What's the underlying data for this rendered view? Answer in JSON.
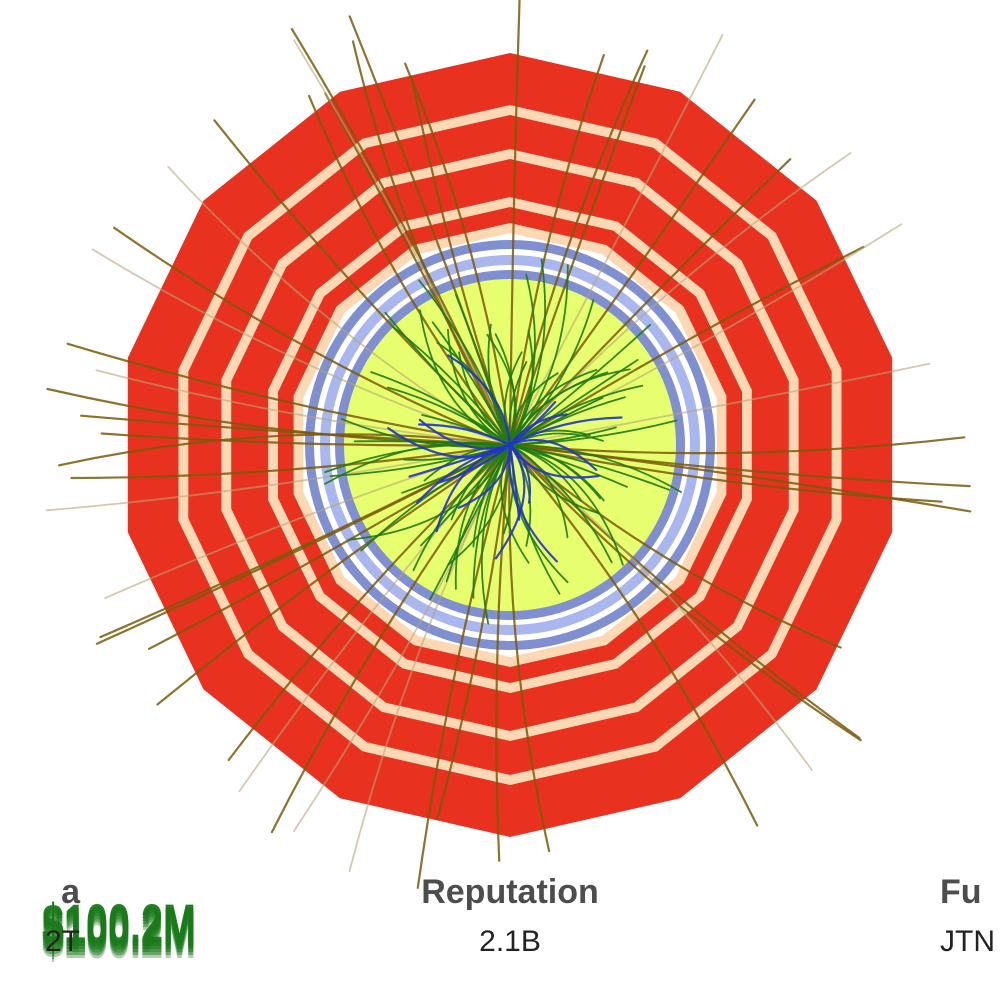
{
  "stats": [
    {
      "label": "a",
      "value": "2T"
    },
    {
      "label": "Reputation",
      "value": "2.1B"
    },
    {
      "label": "Fu",
      "value": "JTN"
    }
  ],
  "badge": {
    "text": "$100.2M",
    "color": "#1a7a1a"
  },
  "colors": {
    "calorimeter_outer": "#e8321f",
    "calorimeter_gap": "#fcd9b4",
    "tracker_ring": "#7f8fd0",
    "tracker_ring_light": "#aab6ee",
    "inner_fill": "#e7ff6e",
    "track_green": "#1f7a12",
    "track_olive": "#7a5a0a",
    "track_blue": "#2233cc"
  }
}
